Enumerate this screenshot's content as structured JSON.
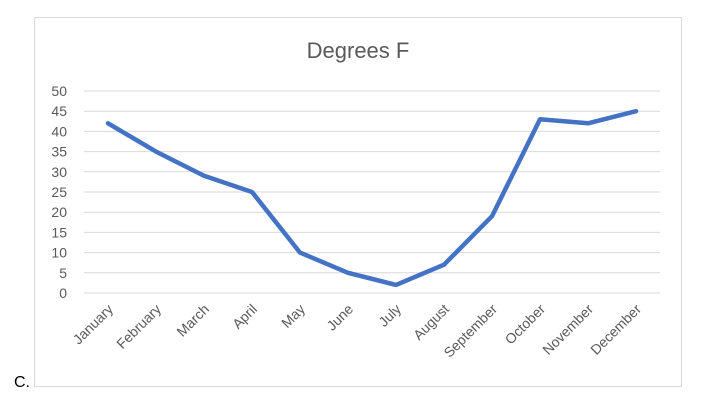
{
  "corner_label": "C.",
  "chart_data": {
    "type": "line",
    "title": "Degrees F",
    "xlabel": "",
    "ylabel": "",
    "categories": [
      "January",
      "February",
      "March",
      "April",
      "May",
      "June",
      "July",
      "August",
      "September",
      "October",
      "November",
      "December"
    ],
    "series": [
      {
        "values": [
          42,
          35,
          29,
          25,
          10,
          5,
          2,
          7,
          19,
          43,
          42,
          45
        ],
        "color": "#4472c4"
      }
    ],
    "ylim": [
      0,
      50
    ],
    "yticks": [
      0,
      5,
      10,
      15,
      20,
      25,
      30,
      35,
      40,
      45,
      50
    ],
    "grid": true,
    "legend": "none"
  }
}
